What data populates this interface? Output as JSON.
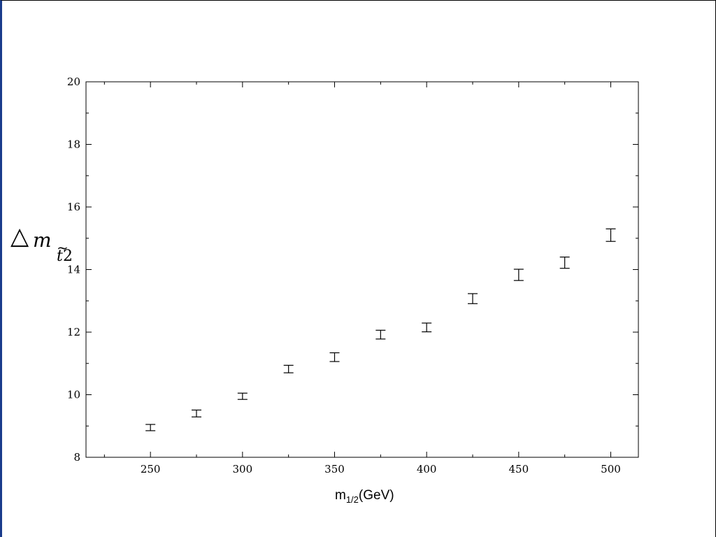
{
  "chart_data": {
    "type": "scatter",
    "error_bars": true,
    "x": [
      250,
      275,
      300,
      325,
      350,
      375,
      400,
      425,
      450,
      475,
      500
    ],
    "y": [
      8.95,
      9.4,
      9.95,
      10.82,
      11.2,
      11.92,
      12.15,
      13.07,
      13.83,
      14.22,
      15.1
    ],
    "y_err": [
      0.1,
      0.11,
      0.1,
      0.12,
      0.14,
      0.14,
      0.14,
      0.16,
      0.18,
      0.18,
      0.2
    ],
    "xlim": [
      215,
      515
    ],
    "ylim": [
      8,
      20
    ],
    "x_ticks": [
      "250",
      "300",
      "350",
      "400",
      "450",
      "500"
    ],
    "y_ticks": [
      "8",
      "10",
      "12",
      "14",
      "16",
      "18",
      "20"
    ],
    "xlabel": "m",
    "xlabel_sub": "1/2",
    "xlabel_suffix": "(GeV)",
    "ylabel_triangle": "△",
    "ylabel_m": "m",
    "ylabel_sub": "t",
    "ylabel_tilde": "~",
    "ylabel_sub2": "2",
    "grid": false
  }
}
